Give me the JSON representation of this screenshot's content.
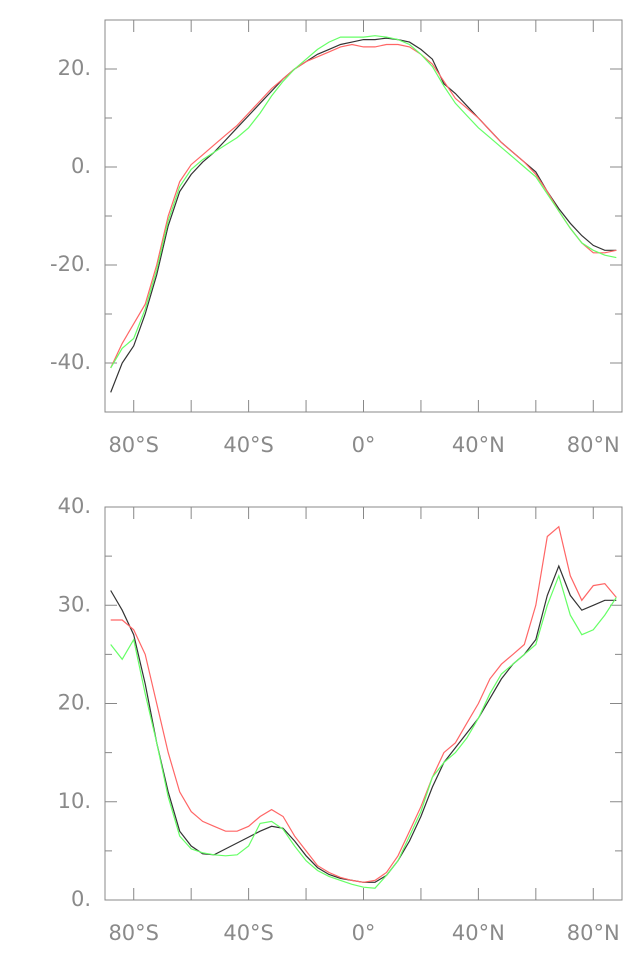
{
  "chart_data": [
    {
      "type": "line",
      "x": [
        -88,
        -84,
        -80,
        -76,
        -72,
        -68,
        -64,
        -60,
        -56,
        -52,
        -48,
        -44,
        -40,
        -36,
        -32,
        -28,
        -24,
        -20,
        -16,
        -12,
        -8,
        -4,
        0,
        4,
        8,
        12,
        16,
        20,
        24,
        28,
        32,
        36,
        40,
        44,
        48,
        52,
        56,
        60,
        64,
        68,
        72,
        76,
        80,
        84,
        88
      ],
      "xlim": [
        -90,
        90
      ],
      "xticks": [
        {
          "value": -80,
          "label": "80°S"
        },
        {
          "value": -40,
          "label": "40°S"
        },
        {
          "value": 0,
          "label": "0°"
        },
        {
          "value": 40,
          "label": "40°N"
        },
        {
          "value": 80,
          "label": "80°N"
        }
      ],
      "xminor": [
        -60,
        -20,
        20,
        60
      ],
      "ylim": [
        -50,
        30
      ],
      "yticks": [
        {
          "value": -40,
          "label": "-40."
        },
        {
          "value": -20,
          "label": "-20."
        },
        {
          "value": 0,
          "label": "0."
        },
        {
          "value": 20,
          "label": "20."
        }
      ],
      "yminor": [
        -50,
        -30,
        -10,
        10,
        30
      ],
      "series": [
        {
          "color": "#333333",
          "values": [
            -46,
            -40,
            -36.5,
            -30,
            -22,
            -12,
            -5,
            -1.5,
            1,
            3,
            5.5,
            8,
            10.5,
            13,
            15.5,
            18,
            20,
            21.5,
            23,
            24,
            25,
            25.5,
            26,
            26,
            26.3,
            26,
            25.5,
            24,
            22,
            17,
            15,
            12.5,
            10,
            7.5,
            5,
            3,
            1,
            -1,
            -5,
            -8.5,
            -11.5,
            -14,
            -16,
            -17,
            -17
          ]
        },
        {
          "color": "#ff6666",
          "values": [
            -41,
            -36,
            -32,
            -28,
            -20,
            -10,
            -3,
            0.5,
            2.5,
            4.5,
            6.5,
            8.5,
            11,
            13.5,
            16,
            18,
            20,
            21.5,
            22.5,
            23.5,
            24.5,
            25,
            24.5,
            24.5,
            25,
            25,
            24.5,
            23,
            21,
            17.5,
            14,
            12,
            10,
            7.5,
            5,
            3,
            1,
            -1.5,
            -5,
            -9,
            -12.5,
            -15.5,
            -17.5,
            -17.5,
            -17
          ]
        },
        {
          "color": "#66ff66",
          "values": [
            -41,
            -37,
            -35,
            -29,
            -21,
            -11,
            -4,
            -0.5,
            1.5,
            3,
            4.5,
            6,
            8,
            11,
            14.5,
            17.5,
            20,
            22,
            24,
            25.5,
            26.5,
            26.5,
            26.5,
            26.8,
            26.5,
            26,
            25,
            23,
            20.5,
            16.5,
            13,
            10.5,
            8,
            6,
            4,
            2,
            0,
            -2,
            -5.5,
            -9,
            -12.5,
            -15.5,
            -17,
            -18,
            -18.5
          ]
        }
      ]
    },
    {
      "type": "line",
      "x": [
        -88,
        -84,
        -80,
        -76,
        -72,
        -68,
        -64,
        -60,
        -56,
        -52,
        -48,
        -44,
        -40,
        -36,
        -32,
        -28,
        -24,
        -20,
        -16,
        -12,
        -8,
        -4,
        0,
        4,
        8,
        12,
        16,
        20,
        24,
        28,
        32,
        36,
        40,
        44,
        48,
        52,
        56,
        60,
        64,
        68,
        72,
        76,
        80,
        84,
        88
      ],
      "xlim": [
        -90,
        90
      ],
      "xticks": [
        {
          "value": -80,
          "label": "80°S"
        },
        {
          "value": -40,
          "label": "40°S"
        },
        {
          "value": 0,
          "label": "0°"
        },
        {
          "value": 40,
          "label": "40°N"
        },
        {
          "value": 80,
          "label": "80°N"
        }
      ],
      "xminor": [
        -60,
        -20,
        20,
        60
      ],
      "ylim": [
        0,
        40
      ],
      "yticks": [
        {
          "value": 0,
          "label": "0."
        },
        {
          "value": 10,
          "label": "10."
        },
        {
          "value": 20,
          "label": "20."
        },
        {
          "value": 30,
          "label": "30."
        },
        {
          "value": 40,
          "label": "40."
        }
      ],
      "yminor": [
        5,
        15,
        25,
        35
      ],
      "series": [
        {
          "color": "#333333",
          "values": [
            31.5,
            29.5,
            27,
            22,
            16,
            11,
            7,
            5.5,
            4.7,
            4.6,
            5.2,
            5.8,
            6.4,
            7,
            7.5,
            7.3,
            6,
            4.5,
            3.3,
            2.6,
            2.2,
            2,
            1.8,
            1.8,
            2.5,
            4,
            6,
            8.5,
            11.5,
            14,
            15.5,
            17,
            18.5,
            20.5,
            22.5,
            24,
            25,
            26.5,
            31,
            34,
            31,
            29.5,
            30,
            30.5,
            30.5
          ]
        },
        {
          "color": "#ff6666",
          "values": [
            28.5,
            28.5,
            27.5,
            25,
            20,
            15,
            11,
            9,
            8,
            7.5,
            7,
            7,
            7.5,
            8.5,
            9.2,
            8.5,
            6.5,
            5,
            3.5,
            2.8,
            2.3,
            2,
            1.8,
            2,
            2.8,
            4.5,
            7,
            9.5,
            12.5,
            15,
            16,
            18,
            20,
            22.5,
            24,
            25,
            26,
            30,
            37,
            38,
            33,
            30.5,
            32,
            32.2,
            30.8
          ]
        },
        {
          "color": "#66ff66",
          "values": [
            26,
            24.5,
            26.5,
            21,
            16,
            10.5,
            6.5,
            5.2,
            4.8,
            4.6,
            4.5,
            4.6,
            5.5,
            7.8,
            8,
            7.2,
            5.5,
            4,
            3,
            2.4,
            2,
            1.6,
            1.3,
            1.2,
            2.5,
            4,
            6.5,
            9,
            12.5,
            14,
            15,
            16.5,
            18.5,
            21,
            23,
            24,
            25,
            26,
            30,
            33,
            29,
            27,
            27.5,
            29,
            30.8
          ]
        }
      ]
    }
  ]
}
